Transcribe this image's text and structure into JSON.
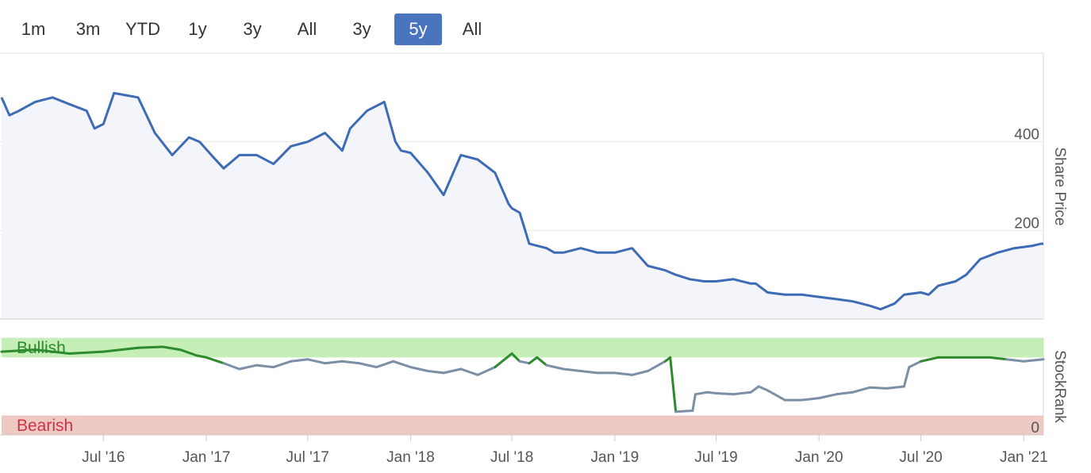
{
  "range_selector": {
    "buttons": [
      {
        "label": "1m",
        "active": false
      },
      {
        "label": "3m",
        "active": false
      },
      {
        "label": "YTD",
        "active": false
      },
      {
        "label": "1y",
        "active": false
      },
      {
        "label": "3y",
        "active": false
      },
      {
        "label": "All",
        "active": false
      },
      {
        "label": "3y",
        "active": false
      },
      {
        "label": "5y",
        "active": true
      },
      {
        "label": "All",
        "active": false
      }
    ],
    "active_color": "#4a74bd"
  },
  "chart_data": [
    {
      "type": "line",
      "ylabel": "Share Price",
      "ylim": [
        0,
        600
      ],
      "yticks": [
        0,
        200,
        400
      ],
      "xlim": [
        "2016-01-01",
        "2021-02-05"
      ],
      "xticks": [
        {
          "date": "2016-07-01",
          "label": "Jul '16"
        },
        {
          "date": "2017-01-01",
          "label": "Jan '17"
        },
        {
          "date": "2017-07-01",
          "label": "Jul '17"
        },
        {
          "date": "2018-01-01",
          "label": "Jan '18"
        },
        {
          "date": "2018-07-01",
          "label": "Jul '18"
        },
        {
          "date": "2019-01-01",
          "label": "Jan '19"
        },
        {
          "date": "2019-07-01",
          "label": "Jul '19"
        },
        {
          "date": "2020-01-01",
          "label": "Jan '20"
        },
        {
          "date": "2020-07-01",
          "label": "Jul '20"
        },
        {
          "date": "2021-01-01",
          "label": "Jan '21"
        }
      ],
      "series": [
        {
          "color": "#3d6bb5",
          "x": [
            "2016-01-01",
            "2016-01-15",
            "2016-02-01",
            "2016-03-01",
            "2016-04-01",
            "2016-05-01",
            "2016-06-01",
            "2016-06-15",
            "2016-07-01",
            "2016-07-20",
            "2016-08-10",
            "2016-09-01",
            "2016-10-01",
            "2016-11-01",
            "2016-12-01",
            "2016-12-20",
            "2017-01-10",
            "2017-02-01",
            "2017-03-01",
            "2017-04-01",
            "2017-05-01",
            "2017-06-01",
            "2017-07-01",
            "2017-08-01",
            "2017-09-01",
            "2017-09-15",
            "2017-10-15",
            "2017-11-15",
            "2017-12-05",
            "2017-12-15",
            "2018-01-01",
            "2018-02-01",
            "2018-03-01",
            "2018-04-01",
            "2018-05-01",
            "2018-06-01",
            "2018-06-25",
            "2018-07-01",
            "2018-07-15",
            "2018-08-01",
            "2018-09-01",
            "2018-09-15",
            "2018-10-01",
            "2018-11-01",
            "2018-12-01",
            "2019-01-01",
            "2019-02-01",
            "2019-03-01",
            "2019-04-01",
            "2019-04-20",
            "2019-05-15",
            "2019-06-10",
            "2019-07-01",
            "2019-08-01",
            "2019-09-01",
            "2019-09-10",
            "2019-10-01",
            "2019-11-01",
            "2019-12-01",
            "2020-01-01",
            "2020-02-01",
            "2020-03-01",
            "2020-04-01",
            "2020-04-20",
            "2020-05-15",
            "2020-06-01",
            "2020-07-01",
            "2020-07-15",
            "2020-08-01",
            "2020-09-01",
            "2020-09-20",
            "2020-10-15",
            "2020-11-15",
            "2020-12-15",
            "2021-01-15",
            "2021-02-01",
            "2021-02-05"
          ],
          "values": [
            500,
            460,
            470,
            490,
            500,
            485,
            470,
            430,
            440,
            510,
            505,
            500,
            420,
            370,
            410,
            400,
            370,
            340,
            370,
            370,
            350,
            390,
            400,
            420,
            380,
            430,
            470,
            490,
            400,
            380,
            375,
            330,
            280,
            370,
            360,
            330,
            260,
            250,
            240,
            170,
            160,
            150,
            150,
            160,
            150,
            150,
            160,
            120,
            110,
            100,
            90,
            85,
            85,
            90,
            80,
            80,
            60,
            55,
            55,
            50,
            45,
            40,
            30,
            22,
            35,
            55,
            60,
            55,
            75,
            85,
            100,
            135,
            150,
            160,
            165,
            170,
            170
          ]
        }
      ]
    },
    {
      "type": "line",
      "ylabel": "StockRank",
      "ylim": [
        0,
        100
      ],
      "yticks": [
        0
      ],
      "xlim": [
        "2016-01-01",
        "2021-02-05"
      ],
      "bands": [
        {
          "label": "Bullish",
          "from": 80,
          "to": 100,
          "color": "#c5efb6",
          "label_color": "#2d8a2d"
        },
        {
          "label": "Bearish",
          "from": 0,
          "to": 20,
          "color": "#eec9c3",
          "label_color": "#cc3344"
        }
      ],
      "series": [
        {
          "color": "#7b8fa6",
          "bullish_color": "#2d8a2d",
          "bearish_color": "#cc3344",
          "x": [
            "2016-01-01",
            "2016-03-01",
            "2016-05-01",
            "2016-07-01",
            "2016-09-01",
            "2016-10-15",
            "2016-11-15",
            "2016-12-15",
            "2017-01-01",
            "2017-02-01",
            "2017-03-01",
            "2017-04-01",
            "2017-05-01",
            "2017-06-01",
            "2017-07-01",
            "2017-08-01",
            "2017-09-01",
            "2017-10-01",
            "2017-11-01",
            "2017-12-01",
            "2018-01-01",
            "2018-02-01",
            "2018-03-01",
            "2018-04-01",
            "2018-05-01",
            "2018-06-01",
            "2018-07-01",
            "2018-07-15",
            "2018-08-01",
            "2018-08-15",
            "2018-09-01",
            "2018-10-01",
            "2018-11-01",
            "2018-12-01",
            "2019-01-01",
            "2019-02-01",
            "2019-03-01",
            "2019-04-01",
            "2019-04-10",
            "2019-04-20",
            "2019-05-20",
            "2019-05-25",
            "2019-06-15",
            "2019-07-01",
            "2019-08-01",
            "2019-09-01",
            "2019-09-15",
            "2019-10-01",
            "2019-11-01",
            "2019-12-01",
            "2020-01-01",
            "2020-02-01",
            "2020-03-01",
            "2020-04-01",
            "2020-05-01",
            "2020-06-01",
            "2020-06-10",
            "2020-07-01",
            "2020-08-01",
            "2020-09-01",
            "2020-10-01",
            "2020-11-01",
            "2020-12-01",
            "2021-01-01",
            "2021-02-05"
          ],
          "values": [
            86,
            88,
            84,
            86,
            90,
            91,
            88,
            82,
            80,
            74,
            68,
            72,
            70,
            76,
            78,
            74,
            76,
            74,
            70,
            76,
            70,
            66,
            64,
            68,
            62,
            70,
            84,
            76,
            74,
            80,
            72,
            68,
            66,
            64,
            64,
            62,
            66,
            76,
            80,
            24,
            25,
            42,
            44,
            43,
            42,
            44,
            50,
            46,
            36,
            36,
            38,
            42,
            44,
            49,
            48,
            50,
            70,
            76,
            80,
            80,
            80,
            80,
            78,
            76,
            78
          ]
        }
      ]
    }
  ]
}
